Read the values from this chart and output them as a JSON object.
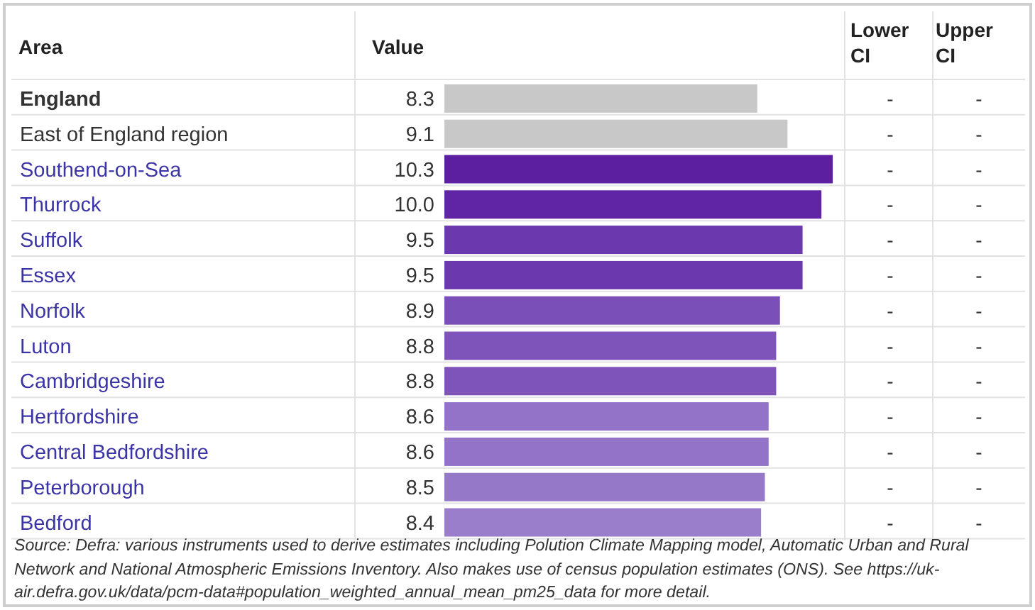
{
  "chart_data": {
    "type": "bar",
    "orientation": "horizontal",
    "ylabel": "Area",
    "xlabel": "Value",
    "categories": [
      "England",
      "East of England region",
      "Southend-on-Sea",
      "Thurrock",
      "Suffolk",
      "Essex",
      "Norfolk",
      "Luton",
      "Cambridgeshire",
      "Hertfordshire",
      "Central Bedfordshire",
      "Peterborough",
      "Bedford"
    ],
    "values": [
      8.3,
      9.1,
      10.3,
      10.0,
      9.5,
      9.5,
      8.9,
      8.8,
      8.8,
      8.6,
      8.6,
      8.5,
      8.4
    ],
    "value_labels": [
      "8.3",
      "9.1",
      "10.3",
      "10.0",
      "9.5",
      "9.5",
      "8.9",
      "8.8",
      "8.8",
      "8.6",
      "8.6",
      "8.5",
      "8.4"
    ],
    "colors": [
      "#c8c8c8",
      "#c8c8c8",
      "#5b1fa0",
      "#5f25a4",
      "#6b39ad",
      "#6b39ad",
      "#7b4fb8",
      "#7e53ba",
      "#7e53ba",
      "#9373c8",
      "#9373c8",
      "#9678c9",
      "#9a7ecc"
    ],
    "annotations": [
      "Lower CI",
      "Upper CI",
      "-",
      "-",
      "-",
      "-",
      "-",
      "-",
      "-",
      "-",
      "-",
      "-",
      "-",
      "-",
      "-",
      "-",
      "-",
      "-",
      "-",
      "-",
      "-",
      "-",
      "-",
      "-",
      "-",
      "-",
      "-",
      "-",
      "Source: Defra: various instruments used to derive estimates including Polution Climate Mapping model, Automatic Urban and Rural Network and National Atmospheric Emissions Inventory. Also makes use of census population estimates (ONS). See https://uk-air.defra.gov.uk/data/pcm-data#population_weighted_annual_mean_pm25_data for more detail."
    ]
  }
}
